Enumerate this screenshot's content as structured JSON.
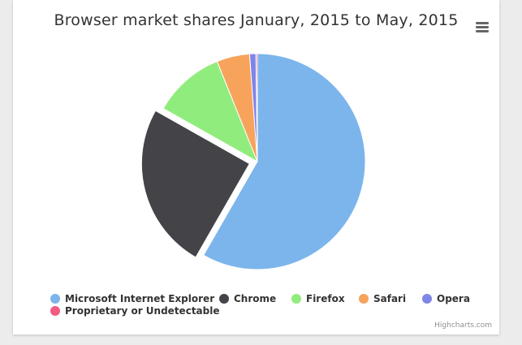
{
  "chart": {
    "title": "Browser market shares January, 2015 to May, 2015",
    "credits": "Highcharts.com",
    "menu_icon": "hamburger-menu-icon"
  },
  "chart_data": {
    "type": "pie",
    "title": "Browser market shares January, 2015 to May, 2015",
    "legend_position": "bottom",
    "series": [
      {
        "data": [
          {
            "name": "Microsoft Internet Explorer",
            "value": 56.33,
            "color": "#7cb5ec"
          },
          {
            "name": "Chrome",
            "value": 24.03,
            "color": "#434348",
            "sliced": true
          },
          {
            "name": "Firefox",
            "value": 10.38,
            "color": "#90ed7d"
          },
          {
            "name": "Safari",
            "value": 4.77,
            "color": "#f7a35c"
          },
          {
            "name": "Opera",
            "value": 0.91,
            "color": "#8085e9"
          },
          {
            "name": "Proprietary or Undetectable",
            "value": 0.2,
            "color": "#f15c80"
          }
        ]
      }
    ]
  }
}
